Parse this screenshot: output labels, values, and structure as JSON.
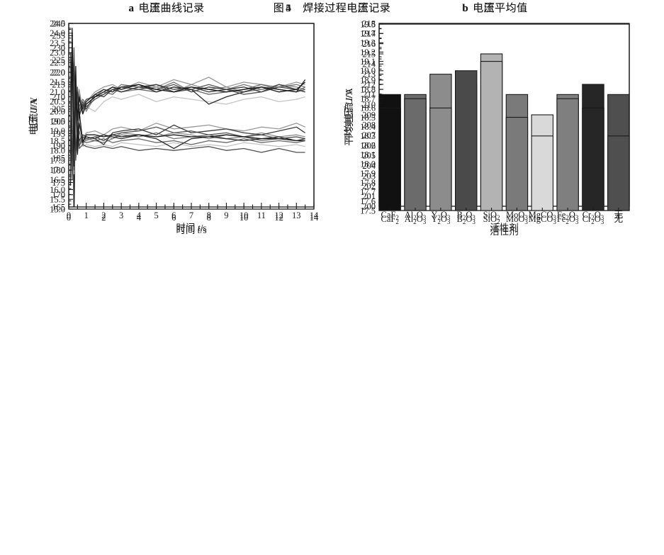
{
  "page": {
    "background": "#ffffff",
    "ink": "#1a1a1a"
  },
  "agents": [
    "CaF₂",
    "Al₂O₃",
    "Y₂O₃",
    "B₂O₃",
    "SiO₂",
    "MoO₃",
    "MgCO₃",
    "Fe₂O₃",
    "Cr₂O₃",
    "无"
  ],
  "bar_colors": [
    "#111111",
    "#6b6b6b",
    "#8c8c8c",
    "#4a4a4a",
    "#b3b3b3",
    "#7a7a7a",
    "#d9d9d9",
    "#7f7f7f",
    "#262626",
    "#4f4f4f"
  ],
  "figure4": {
    "label": "图",
    "num": "4",
    "title": "焊接过程电流记录",
    "panel_a": {
      "tag": "a",
      "text": "电流曲线记录"
    },
    "panel_b": {
      "tag": "b",
      "text": "电流平均值"
    }
  },
  "figure5": {
    "label": "图",
    "num": "5",
    "title": "焊接过程电压记录",
    "panel_a": {
      "tag": "a",
      "text": "电压曲线记录"
    },
    "panel_b": {
      "tag": "b",
      "text": "电压平均值"
    }
  },
  "chart_data": [
    {
      "id": "current-curves",
      "type": "line",
      "xlabel": {
        "prefix": "时间",
        "symbol": "t",
        "unit": "s"
      },
      "ylabel": {
        "prefix": "电流",
        "symbol": "I",
        "unit": "A"
      },
      "xlim": [
        0,
        14
      ],
      "ylim": [
        165,
        240
      ],
      "x_major": 1,
      "x_minor": 0.5,
      "y_major": 5,
      "y_minor": 2.5,
      "x_decimals": 0,
      "y_decimals": 0,
      "grid": false,
      "legend": "none",
      "x": [
        0.1,
        0.2,
        0.3,
        0.4,
        0.5,
        0.6,
        0.8,
        1,
        1.5,
        2,
        2.5,
        3,
        4,
        5,
        6,
        7,
        8,
        9,
        10,
        11,
        12,
        13,
        13.5
      ],
      "series": [
        {
          "name": "MgCO₃",
          "color": "#c4c4c4",
          "values": [
            200,
            220,
            192,
            210,
            204,
            207,
            203,
            206,
            204,
            208,
            210,
            209,
            211,
            208,
            210,
            209,
            208,
            207,
            209,
            210,
            208,
            209,
            210
          ]
        },
        {
          "name": "SiO₂",
          "color": "#999999",
          "values": [
            208,
            228,
            200,
            216,
            206,
            213,
            204,
            208,
            212,
            214,
            215,
            213,
            216,
            214,
            217,
            215,
            218,
            214,
            216,
            215,
            214,
            216,
            215
          ]
        },
        {
          "name": "Fe₂O₃",
          "color": "#8a8a8a",
          "values": [
            218,
            202,
            226,
            200,
            211,
            205,
            208,
            204,
            210,
            211,
            214,
            212,
            213,
            214,
            212,
            215,
            213,
            214,
            212,
            213,
            215,
            214,
            213
          ]
        },
        {
          "name": "Y₂O₃",
          "color": "#777777",
          "values": [
            205,
            225,
            195,
            218,
            203,
            211,
            206,
            209,
            210,
            213,
            212,
            215,
            214,
            213,
            216,
            212,
            214,
            213,
            215,
            213,
            214,
            215,
            214
          ]
        },
        {
          "name": "MoO₃",
          "color": "#666666",
          "values": [
            225,
            195,
            220,
            202,
            210,
            206,
            209,
            207,
            210,
            212,
            211,
            214,
            213,
            212,
            214,
            213,
            211,
            212,
            213,
            215,
            213,
            212,
            214
          ]
        },
        {
          "name": "Al₂O₃",
          "color": "#555555",
          "values": [
            222,
            205,
            230,
            198,
            214,
            204,
            208,
            206,
            209,
            211,
            213,
            214,
            213,
            215,
            212,
            213,
            215,
            213,
            212,
            214,
            213,
            212,
            213
          ]
        },
        {
          "name": "无",
          "color": "#4f4f4f",
          "values": [
            228,
            198,
            218,
            204,
            208,
            203,
            206,
            209,
            210,
            211,
            213,
            212,
            214,
            213,
            215,
            212,
            214,
            213,
            211,
            212,
            214,
            213,
            212
          ]
        },
        {
          "name": "B₂O₃",
          "color": "#3d3d3d",
          "values": [
            215,
            200,
            224,
            205,
            212,
            202,
            207,
            205,
            211,
            210,
            213,
            212,
            214,
            215,
            213,
            214,
            212,
            213,
            214,
            212,
            215,
            213,
            212
          ]
        },
        {
          "name": "Cr₂O₃",
          "color": "#2e2e2e",
          "values": [
            212,
            230,
            196,
            214,
            202,
            209,
            205,
            208,
            211,
            213,
            212,
            214,
            215,
            212,
            214,
            213,
            207,
            210,
            212,
            214,
            213,
            212,
            217
          ]
        },
        {
          "name": "CaF₂",
          "color": "#1a1a1a",
          "values": [
            190,
            238,
            160,
            215,
            200,
            210,
            203,
            207,
            210,
            212,
            214,
            213,
            215,
            213,
            212,
            214,
            213,
            212,
            213,
            214,
            212,
            213,
            216
          ]
        }
      ]
    },
    {
      "id": "current-means",
      "type": "bar",
      "xlabel": "活性剂",
      "ylabel": {
        "prefix": "平均电流",
        "symbol": "I",
        "unit": "A"
      },
      "ylim": [
        200,
        218
      ],
      "y_major": 1,
      "y_minor": 0.5,
      "y_decimals": 0,
      "grid": false,
      "legend": "none",
      "categories": [
        "CaF₂",
        "Al₂O₃",
        "Y₂O₃",
        "B₂O₃",
        "SiO₂",
        "MoO₃",
        "MgCO₃",
        "Fe₂O₃",
        "Cr₂O₃",
        "无"
      ],
      "values": [
        211,
        211,
        213,
        212,
        215,
        211,
        209,
        211,
        212,
        211
      ],
      "colors": [
        "#111111",
        "#6b6b6b",
        "#8c8c8c",
        "#4a4a4a",
        "#b3b3b3",
        "#7a7a7a",
        "#d9d9d9",
        "#7f7f7f",
        "#262626",
        "#4f4f4f"
      ]
    },
    {
      "id": "voltage-curves",
      "type": "line",
      "xlabel": {
        "prefix": "时间",
        "symbol": "t",
        "unit": "s"
      },
      "ylabel": {
        "prefix": "电压",
        "symbol": "U",
        "unit": "V"
      },
      "xlim": [
        0,
        14
      ],
      "ylim": [
        15,
        24.5
      ],
      "x_major": 2,
      "x_minor": 0.5,
      "y_major": 0.5,
      "y_minor": 0.25,
      "x_decimals": 0,
      "y_decimals": 1,
      "grid": false,
      "legend": "none",
      "x": [
        0.1,
        0.2,
        0.3,
        0.4,
        0.5,
        0.6,
        0.8,
        1,
        1.5,
        2,
        2.5,
        3,
        4,
        5,
        6,
        7,
        8,
        9,
        10,
        11,
        12,
        13,
        13.5
      ],
      "series": [
        {
          "name": "MgCO₃",
          "color": "#c4c4c4",
          "values": [
            18.5,
            20.5,
            16.8,
            19.5,
            17.9,
            18.6,
            18.2,
            18.3,
            18.2,
            18.3,
            18.2,
            18.4,
            18.3,
            18.2,
            18.4,
            18.2,
            18.3,
            18.2,
            18.4,
            18.3,
            18.2,
            18.3,
            18.2
          ]
        },
        {
          "name": "SiO₂",
          "color": "#999999",
          "values": [
            17.5,
            21.0,
            17.8,
            19.8,
            18.3,
            19.3,
            18.6,
            18.9,
            19.0,
            18.8,
            19.1,
            19.2,
            19.0,
            19.4,
            19.1,
            19.2,
            19.3,
            19.1,
            19.0,
            19.2,
            19.1,
            19.4,
            19.2
          ]
        },
        {
          "name": "Fe₂O₃",
          "color": "#8a8a8a",
          "values": [
            20.0,
            17.6,
            21.0,
            18.1,
            19.3,
            18.4,
            18.7,
            18.5,
            18.7,
            18.8,
            18.6,
            18.9,
            18.8,
            18.7,
            18.9,
            18.8,
            18.6,
            18.8,
            18.7,
            18.9,
            18.7,
            18.8,
            18.7
          ]
        },
        {
          "name": "Y₂O₃",
          "color": "#777777",
          "values": [
            18.0,
            22.5,
            17.0,
            20.5,
            18.0,
            19.0,
            18.3,
            18.6,
            18.5,
            18.4,
            18.6,
            18.8,
            18.7,
            18.9,
            18.6,
            18.7,
            18.8,
            18.6,
            18.7,
            18.5,
            18.6,
            18.7,
            18.6
          ]
        },
        {
          "name": "MoO₃",
          "color": "#666666",
          "values": [
            19.8,
            17.2,
            20.8,
            17.8,
            19.0,
            18.3,
            18.5,
            18.4,
            18.5,
            18.6,
            18.4,
            18.5,
            18.6,
            18.4,
            18.5,
            18.3,
            18.5,
            18.4,
            18.6,
            18.4,
            18.5,
            18.4,
            18.5
          ]
        },
        {
          "name": "Al₂O₃",
          "color": "#555555",
          "values": [
            20.5,
            17.0,
            21.5,
            17.5,
            19.5,
            18.2,
            18.7,
            18.6,
            18.7,
            18.5,
            18.8,
            18.9,
            19.0,
            19.2,
            18.9,
            19.0,
            18.8,
            18.9,
            18.7,
            18.8,
            18.6,
            18.7,
            18.6
          ]
        },
        {
          "name": "无",
          "color": "#4f4f4f",
          "values": [
            19.5,
            16.5,
            20.2,
            17.6,
            18.8,
            18.1,
            18.3,
            18.2,
            18.1,
            18.2,
            18.1,
            18.2,
            18.0,
            18.1,
            18.0,
            18.1,
            18.2,
            18.0,
            18.1,
            17.9,
            18.1,
            17.9,
            17.9
          ]
        },
        {
          "name": "B₂O₃",
          "color": "#3d3d3d",
          "values": [
            21.5,
            17.5,
            20.0,
            18.0,
            19.2,
            18.5,
            18.8,
            18.7,
            18.6,
            18.3,
            18.9,
            19.0,
            19.1,
            18.8,
            19.3,
            18.9,
            19.0,
            19.1,
            18.9,
            18.8,
            19.0,
            19.2,
            18.9
          ]
        },
        {
          "name": "Cr₂O₃",
          "color": "#2e2e2e",
          "values": [
            17.8,
            23.0,
            17.4,
            21.0,
            18.2,
            19.4,
            18.5,
            18.7,
            18.6,
            18.8,
            18.7,
            18.6,
            18.8,
            18.6,
            18.1,
            18.6,
            18.7,
            18.6,
            18.5,
            18.6,
            18.7,
            18.5,
            18.6
          ]
        },
        {
          "name": "CaF₂",
          "color": "#1a1a1a",
          "values": [
            16.2,
            24.0,
            17.2,
            22.3,
            17.8,
            20.0,
            18.4,
            18.8,
            18.8,
            18.7,
            18.8,
            18.7,
            18.8,
            18.7,
            18.8,
            18.7,
            18.7,
            18.8,
            18.7,
            18.6,
            18.6,
            18.5,
            18.5
          ]
        }
      ]
    },
    {
      "id": "voltage-means",
      "type": "bar",
      "xlabel": "活性剂",
      "ylabel": {
        "prefix": "平均电压",
        "symbol": "U",
        "unit": "V"
      },
      "ylim": [
        17.5,
        19.5
      ],
      "y_major": 0.1,
      "y_minor": 0.05,
      "y_decimals": 1,
      "grid": false,
      "legend": "none",
      "categories": [
        "CaF₂",
        "Al₂O₃",
        "Y₂O₃",
        "B₂O₃",
        "SiO₂",
        "MoO₃",
        "MgCO₃",
        "Fe₂O₃",
        "Cr₂O₃",
        "无"
      ],
      "values": [
        18.6,
        18.7,
        18.6,
        19.0,
        19.1,
        18.5,
        18.3,
        18.7,
        18.6,
        18.3
      ],
      "colors": [
        "#111111",
        "#6b6b6b",
        "#8c8c8c",
        "#4a4a4a",
        "#b3b3b3",
        "#7a7a7a",
        "#d9d9d9",
        "#7f7f7f",
        "#262626",
        "#4f4f4f"
      ]
    }
  ]
}
